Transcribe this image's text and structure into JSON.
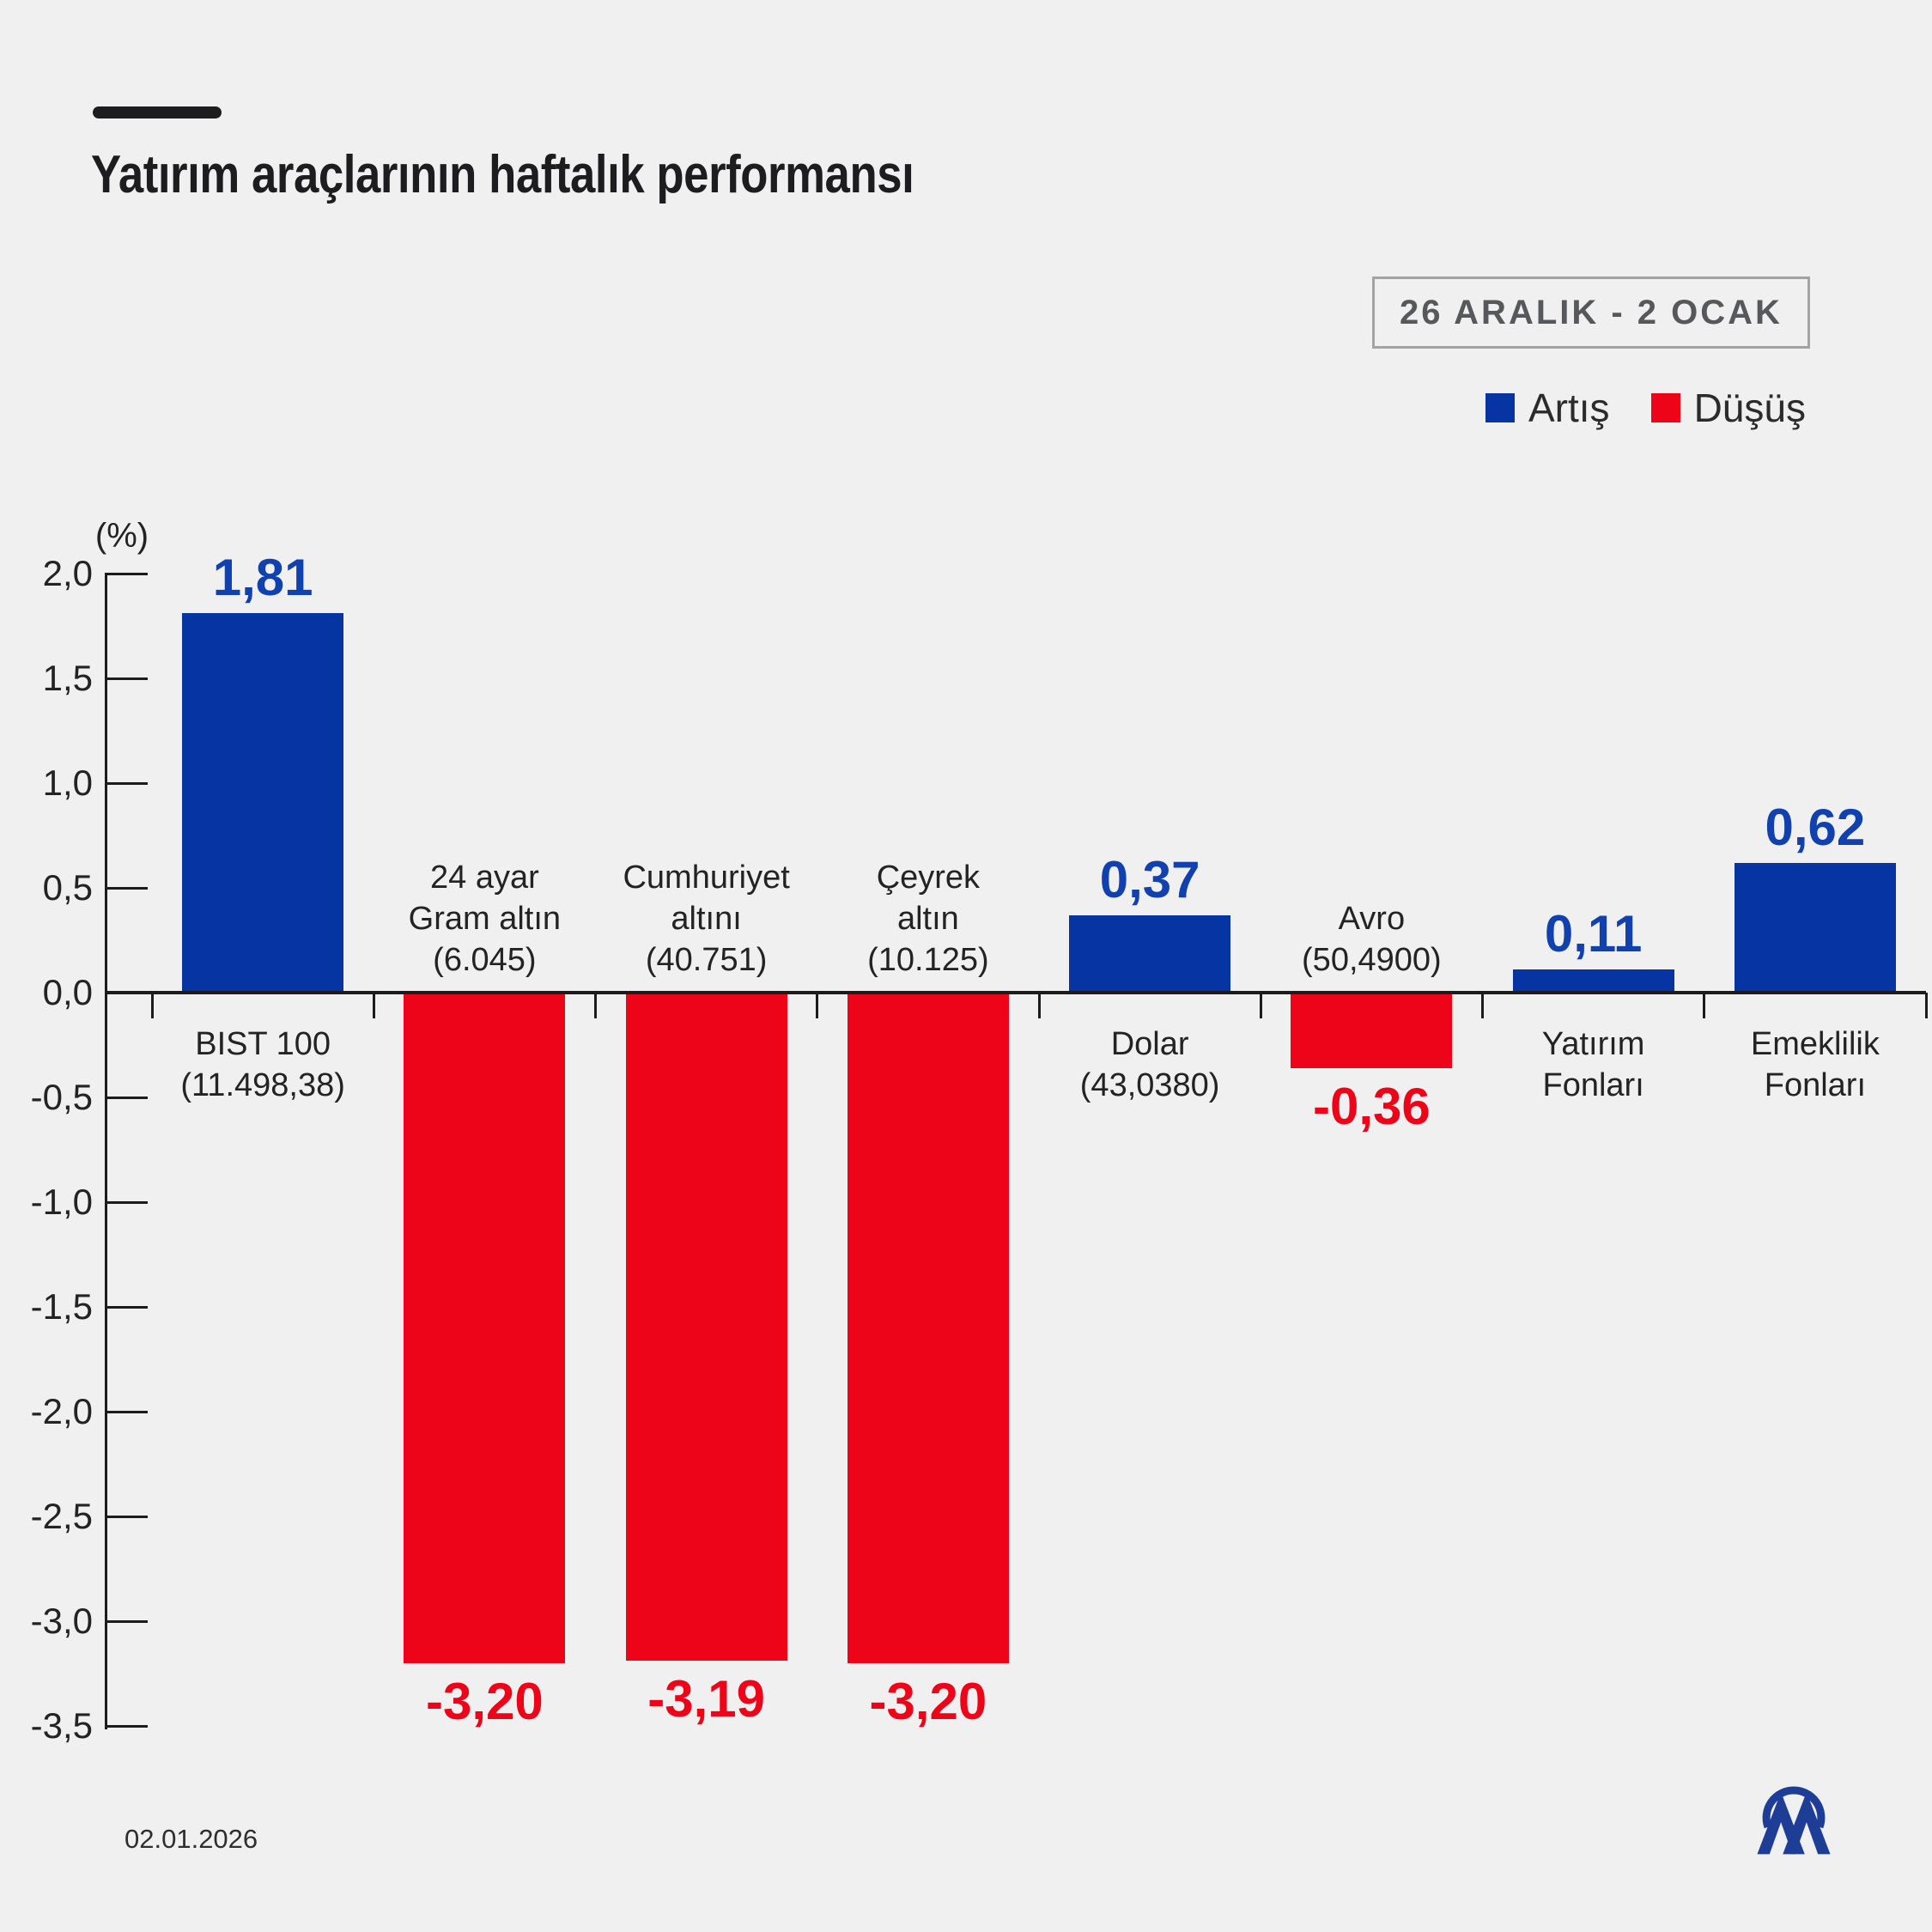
{
  "header": {
    "title": "Yatırım araçlarının haftalık performansı"
  },
  "badge": {
    "text": "26 ARALIK - 2 OCAK"
  },
  "legend": {
    "position": "top-right",
    "items": [
      {
        "label": "Artış",
        "color": "#0634a3"
      },
      {
        "label": "Düşüş",
        "color": "#ee0418"
      }
    ]
  },
  "footer": {
    "date": "02.01.2026",
    "logo": "AA"
  },
  "colors": {
    "background": "#f0f0f1",
    "bar_up": "#0634a3",
    "bar_down": "#ee0418",
    "value_up_text": "#1141ae",
    "value_down_text": "#ee0418",
    "axis": "#1c1c1c",
    "title": "#1d1d1f",
    "badge_border": "#a3a3a5",
    "badge_text": "#57585c",
    "logo": "#1e3d96"
  },
  "chart_data": {
    "type": "bar",
    "title": "Yatırım araçlarının haftalık performansı",
    "period": "26 ARALIK - 2 OCAK",
    "xlabel": "",
    "ylabel": "(%)",
    "ylim": [
      -3.5,
      2.0
    ],
    "ytick_step": 0.5,
    "grid": false,
    "legend_position": "top-right",
    "yticks": [
      {
        "value": 2.0,
        "label": "2,0"
      },
      {
        "value": 1.5,
        "label": "1,5"
      },
      {
        "value": 1.0,
        "label": "1,0"
      },
      {
        "value": 0.5,
        "label": "0,5"
      },
      {
        "value": 0.0,
        "label": "0,0"
      },
      {
        "value": -0.5,
        "label": "-0,5"
      },
      {
        "value": -1.0,
        "label": "-1,0"
      },
      {
        "value": -1.5,
        "label": "-1,5"
      },
      {
        "value": -2.0,
        "label": "-2,0"
      },
      {
        "value": -2.5,
        "label": "-2,5"
      },
      {
        "value": -3.0,
        "label": "-3,0"
      },
      {
        "value": -3.5,
        "label": "-3,5"
      }
    ],
    "categories": [
      {
        "name": "BIST 100",
        "label_lines": [
          "BIST 100",
          "(11.498,38)"
        ],
        "label_position": "below",
        "value": 1.81,
        "value_label": "1,81",
        "direction": "up"
      },
      {
        "name": "24 ayar Gram altın",
        "label_lines": [
          "24 ayar",
          "Gram altın",
          "(6.045)"
        ],
        "label_position": "above",
        "value": -3.2,
        "value_label": "-3,20",
        "direction": "down"
      },
      {
        "name": "Cumhuriyet altını",
        "label_lines": [
          "Cumhuriyet",
          "altını",
          "(40.751)"
        ],
        "label_position": "above",
        "value": -3.19,
        "value_label": "-3,19",
        "direction": "down"
      },
      {
        "name": "Çeyrek altın",
        "label_lines": [
          "Çeyrek",
          "altın",
          "(10.125)"
        ],
        "label_position": "above",
        "value": -3.2,
        "value_label": "-3,20",
        "direction": "down"
      },
      {
        "name": "Dolar",
        "label_lines": [
          "Dolar",
          "(43,0380)"
        ],
        "label_position": "below",
        "value": 0.37,
        "value_label": "0,37",
        "direction": "up"
      },
      {
        "name": "Avro",
        "label_lines": [
          "Avro",
          "(50,4900)"
        ],
        "label_position": "above",
        "value": -0.36,
        "value_label": "-0,36",
        "direction": "down"
      },
      {
        "name": "Yatırım Fonları",
        "label_lines": [
          "Yatırım",
          "Fonları"
        ],
        "label_position": "below",
        "value": 0.11,
        "value_label": "0,11",
        "direction": "up"
      },
      {
        "name": "Emeklilik Fonları",
        "label_lines": [
          "Emeklilik",
          "Fonları"
        ],
        "label_position": "below",
        "value": 0.62,
        "value_label": "0,62",
        "direction": "up"
      }
    ]
  }
}
